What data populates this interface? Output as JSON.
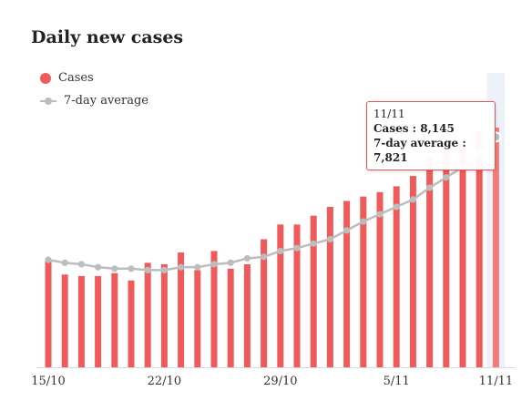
{
  "chart_data": {
    "type": "bar",
    "title": "Daily new cases",
    "xlabel": "",
    "ylabel": "",
    "ylim": [
      0,
      10000
    ],
    "x_tick_labels": [
      "15/10",
      "22/10",
      "29/10",
      "5/11",
      "11/11"
    ],
    "x_tick_positions": [
      0,
      7,
      14,
      21,
      27
    ],
    "categories": [
      "15/10",
      "16/10",
      "17/10",
      "18/10",
      "19/10",
      "20/10",
      "21/10",
      "22/10",
      "23/10",
      "24/10",
      "25/10",
      "26/10",
      "27/10",
      "28/10",
      "29/10",
      "30/10",
      "31/10",
      "1/11",
      "2/11",
      "3/11",
      "4/11",
      "5/11",
      "6/11",
      "7/11",
      "8/11",
      "9/11",
      "10/11",
      "11/11"
    ],
    "series": [
      {
        "name": "Cases",
        "kind": "bar",
        "values": [
          3650,
          3150,
          3100,
          3100,
          3200,
          2950,
          3550,
          3500,
          3900,
          3300,
          3950,
          3350,
          3500,
          4350,
          4850,
          4850,
          5150,
          5450,
          5650,
          5800,
          5950,
          6150,
          6500,
          7100,
          7350,
          7550,
          8000,
          8145
        ]
      },
      {
        "name": "7-day average",
        "kind": "line",
        "values": [
          3650,
          3550,
          3500,
          3400,
          3350,
          3350,
          3300,
          3300,
          3400,
          3400,
          3500,
          3550,
          3700,
          3750,
          3950,
          4050,
          4200,
          4350,
          4650,
          4950,
          5200,
          5450,
          5700,
          6100,
          6450,
          6800,
          7300,
          7821
        ]
      }
    ],
    "legend": "top-left",
    "grid": false,
    "colors": {
      "cases": "#ef5a5a",
      "average": "#bdbdbd",
      "highlight_band": "#eef2f8",
      "highlight_bar": "#f47b7b"
    },
    "highlight_index": 27,
    "tooltip": {
      "date": "11/11",
      "cases_label": "Cases",
      "cases_value": "8,145",
      "avg_label": "7-day average",
      "avg_value": "7,821"
    }
  }
}
